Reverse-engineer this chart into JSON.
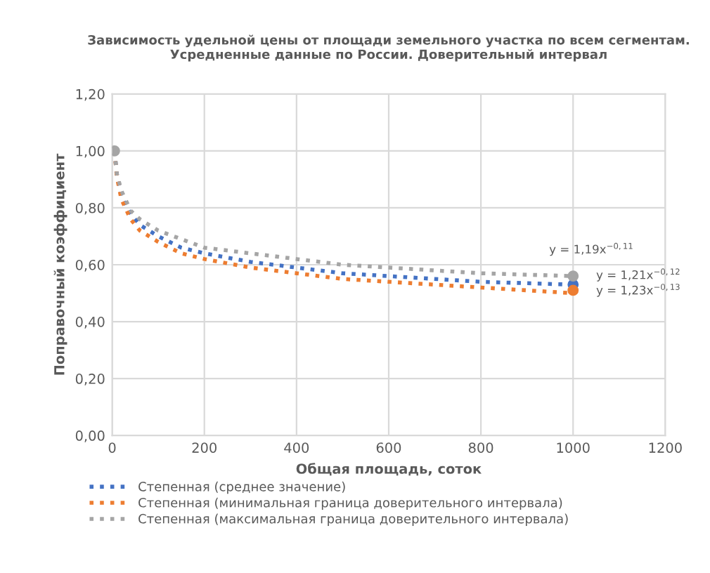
{
  "chart_data": {
    "type": "line",
    "title": "Зависимость удельной цены от площади земельного участка по всем сегментам.\nУсредненные данные по России. Доверительный интервал",
    "xlabel": "Общая площадь, соток",
    "ylabel": "Поправочный коэффициент",
    "series": [
      {
        "name": "Степенная (среднее значение)",
        "color": "#4472c4",
        "x": [
          5,
          10,
          20,
          40,
          60,
          100,
          150,
          200,
          300,
          400,
          500,
          600,
          800,
          1000
        ],
        "values": [
          1.0,
          0.92,
          0.84,
          0.78,
          0.74,
          0.7,
          0.66,
          0.64,
          0.61,
          0.59,
          0.57,
          0.56,
          0.54,
          0.53
        ]
      },
      {
        "name": "Степенная (минимальная граница доверительного интервала)",
        "color": "#ed7d31",
        "x": [
          5,
          10,
          20,
          40,
          60,
          100,
          150,
          200,
          300,
          400,
          500,
          600,
          800,
          1000
        ],
        "values": [
          1.0,
          0.91,
          0.83,
          0.76,
          0.72,
          0.68,
          0.64,
          0.62,
          0.59,
          0.57,
          0.55,
          0.54,
          0.52,
          0.5
        ]
      },
      {
        "name": "Степенная (максимальная граница доверительного интервала)",
        "color": "#a5a5a5",
        "x": [
          5,
          10,
          20,
          40,
          60,
          100,
          150,
          200,
          300,
          400,
          500,
          600,
          800,
          1000
        ],
        "values": [
          1.0,
          0.92,
          0.86,
          0.79,
          0.76,
          0.72,
          0.69,
          0.66,
          0.64,
          0.62,
          0.6,
          0.59,
          0.57,
          0.56
        ]
      },
      {
        "type": "scatter",
        "marker": "circle",
        "color": "#4472c4",
        "x": [
          1000
        ],
        "values": [
          0.53
        ]
      },
      {
        "type": "scatter",
        "marker": "circle",
        "color": "#ed7d31",
        "x": [
          1000
        ],
        "values": [
          0.51
        ]
      },
      {
        "type": "scatter",
        "marker": "circle",
        "color": "#a5a5a5",
        "x": [
          5,
          1000
        ],
        "values": [
          1.0,
          0.56
        ]
      }
    ],
    "annotations": [
      "y = 1,19x$^{−0,11}$",
      "y = 1,21x$^{−0,12}$",
      "y = 1,23x$^{−0,13}$"
    ],
    "xlim": [
      0,
      1200
    ],
    "xticks": [
      0,
      200,
      400,
      600,
      800,
      1000,
      1200
    ],
    "ylim": [
      0,
      1.2
    ],
    "yticks": [
      {
        "value": 0,
        "label": "0,00"
      },
      {
        "value": 0.2,
        "label": "0,20"
      },
      {
        "value": 0.4,
        "label": "0,40"
      },
      {
        "value": 0.6,
        "label": "0,60"
      },
      {
        "value": 0.8,
        "label": "0,80"
      },
      {
        "value": 1.0,
        "label": "1,00"
      },
      {
        "value": 1.2,
        "label": "1,20"
      }
    ],
    "grid": true,
    "legend": "bottom",
    "line_style": "dotted"
  }
}
